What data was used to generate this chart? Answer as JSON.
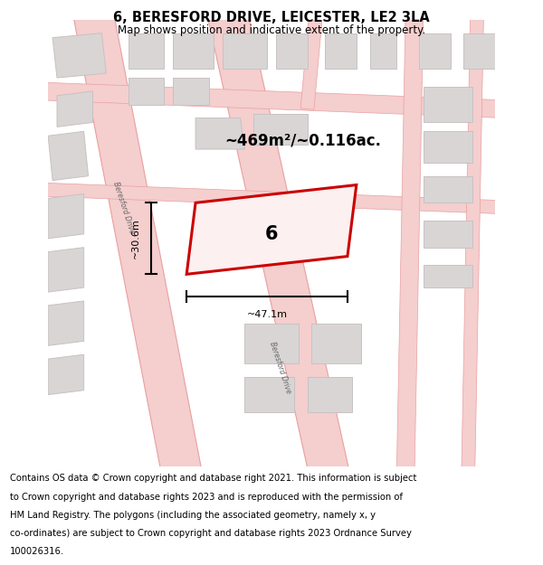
{
  "title": "6, BERESFORD DRIVE, LEICESTER, LE2 3LA",
  "subtitle": "Map shows position and indicative extent of the property.",
  "footer_lines": [
    "Contains OS data © Crown copyright and database right 2021. This information is subject",
    "to Crown copyright and database rights 2023 and is reproduced with the permission of",
    "HM Land Registry. The polygons (including the associated geometry, namely x, y",
    "co-ordinates) are subject to Crown copyright and database rights 2023 Ordnance Survey",
    "100026316."
  ],
  "map_bg": "#f2efef",
  "road_fill": "#f5cece",
  "road_edge": "#e8a0a0",
  "building_fill": "#d9d5d5",
  "building_edge": "#c8c2c2",
  "highlight_fill": "#fdf0f0",
  "highlight_edge": "#cc0000",
  "footer_bg": "#ffffff",
  "area_text": "~469m²/~0.116ac.",
  "width_text": "~47.1m",
  "height_text": "~30.6m",
  "plot_number": "6",
  "street_label": "Beresford Drive",
  "title_fontsize": 10.5,
  "subtitle_fontsize": 8.5,
  "footer_fontsize": 7.2
}
